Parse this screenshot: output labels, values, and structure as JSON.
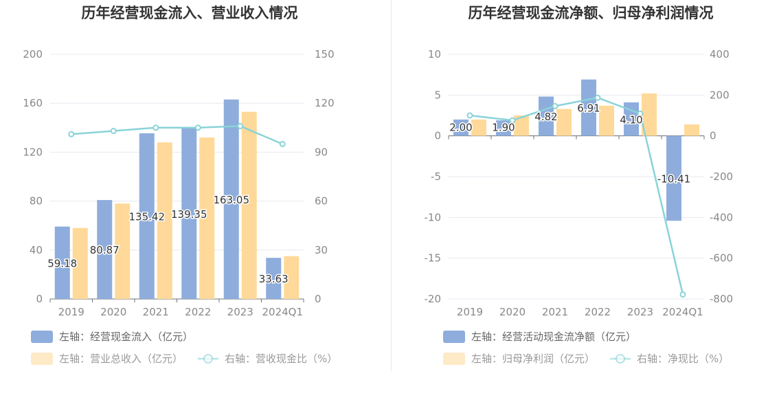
{
  "chart_data": [
    {
      "type": "bar",
      "title": "历年经营现金流入、营业收入情况",
      "categories": [
        "2019",
        "2020",
        "2021",
        "2022",
        "2023",
        "2024Q1"
      ],
      "left_axis": {
        "ylim": [
          0,
          200
        ],
        "ticks": [
          "0",
          "40",
          "80",
          "120",
          "160",
          "200"
        ]
      },
      "right_axis": {
        "ylim": [
          0,
          150
        ],
        "ticks": [
          "0",
          "30",
          "60",
          "90",
          "120",
          "150"
        ]
      },
      "grid": true,
      "legend_position": "bottom",
      "series": [
        {
          "name": "左轴：经营现金流入（亿元）",
          "type": "bar",
          "axis": "left",
          "color": "#8eaddc",
          "values": [
            59.18,
            80.87,
            135.42,
            139.35,
            163.05,
            33.63
          ],
          "labels": [
            "59.18",
            "80.87",
            "135.42",
            "139.35",
            "163.05",
            "33.63"
          ]
        },
        {
          "name": "左轴：营业总收入（亿元）",
          "type": "bar",
          "axis": "left",
          "color": "#ffd999",
          "values": [
            58,
            78,
            128,
            132,
            153,
            35
          ]
        },
        {
          "name": "右轴：营收现金比（%）",
          "type": "line",
          "axis": "right",
          "color": "#89d3d8",
          "values": [
            101,
            103,
            105,
            105,
            106,
            95
          ]
        }
      ]
    },
    {
      "type": "bar",
      "title": "历年经营现金流净额、归母净利润情况",
      "categories": [
        "2019",
        "2020",
        "2021",
        "2022",
        "2023",
        "2024Q1"
      ],
      "left_axis": {
        "ylim": [
          -20,
          10
        ],
        "ticks": [
          "-20",
          "-15",
          "-10",
          "-5",
          "0",
          "5",
          "10"
        ]
      },
      "right_axis": {
        "ylim": [
          -800,
          400
        ],
        "ticks": [
          "-800",
          "-600",
          "-400",
          "-200",
          "0",
          "200",
          "400"
        ]
      },
      "grid": true,
      "legend_position": "bottom",
      "series": [
        {
          "name": "左轴：经营活动现金流净额（亿元）",
          "type": "bar",
          "axis": "left",
          "color": "#8eaddc",
          "values": [
            2.0,
            1.9,
            4.82,
            6.91,
            4.1,
            -10.41
          ],
          "labels": [
            "2.00",
            "1.90",
            "4.82",
            "6.91",
            "4.10",
            "-10.41"
          ]
        },
        {
          "name": "左轴：归母净利润（亿元）",
          "type": "bar",
          "axis": "left",
          "color": "#ffd999",
          "values": [
            2.0,
            2.5,
            3.3,
            3.7,
            5.2,
            1.4
          ]
        },
        {
          "name": "右轴：净现比（%）",
          "type": "line",
          "axis": "right",
          "color": "#89d3d8",
          "values": [
            100,
            76,
            146,
            187,
            109,
            -778
          ]
        }
      ]
    }
  ]
}
